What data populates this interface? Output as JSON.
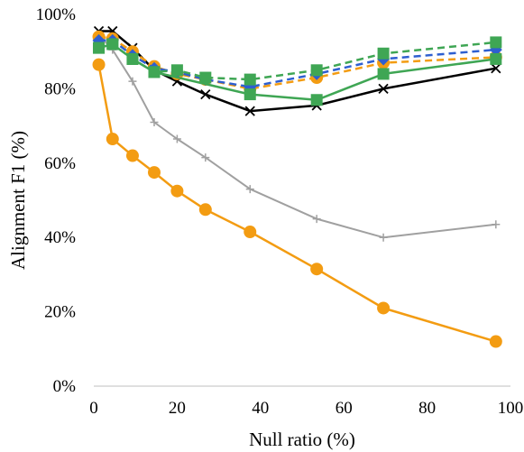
{
  "chart_data": {
    "type": "line",
    "xlabel": "Null ratio (%)",
    "ylabel": "Alignment F1 (%)",
    "xlim": [
      0,
      100
    ],
    "ylim": [
      0,
      100
    ],
    "xticks": [
      0,
      20,
      40,
      60,
      80,
      100
    ],
    "yticks": [
      0,
      20,
      40,
      60,
      80,
      100
    ],
    "xtick_labels": [
      "0",
      "20",
      "40",
      "60",
      "80",
      "100"
    ],
    "ytick_labels": [
      "0%",
      "20%",
      "40%",
      "60%",
      "80%",
      "100%"
    ],
    "grid": false,
    "legend": "none",
    "series": [
      {
        "color": "#a0a0a0",
        "dash": "solid",
        "marker": "plus",
        "x": [
          1.2,
          4.5,
          9.3,
          14.5,
          20,
          26.8,
          37.5,
          53.5,
          69.5,
          96.5
        ],
        "y": [
          94.5,
          90.5,
          82,
          71,
          66.5,
          61.5,
          53,
          45,
          40,
          43.5
        ]
      },
      {
        "color": "#000000",
        "dash": "solid",
        "marker": "x",
        "x": [
          1.2,
          4.5,
          9.3,
          14.5,
          20,
          26.8,
          37.5,
          53.5,
          69.5,
          96.5
        ],
        "y": [
          95.5,
          95.5,
          91,
          85,
          82,
          78.5,
          74,
          75.5,
          80,
          85.5
        ]
      },
      {
        "color": "#f39c12",
        "dash": "solid",
        "marker": "circle",
        "x": [
          1.2,
          4.5,
          9.3,
          14.5,
          20,
          26.8,
          37.5,
          53.5,
          69.5,
          96.5
        ],
        "y": [
          86.5,
          66.5,
          62,
          57.5,
          52.5,
          47.5,
          41.5,
          31.5,
          21,
          12
        ]
      },
      {
        "color": "#f39c12",
        "dash": "dashed",
        "marker": "circle",
        "x": [
          1.2,
          4.5,
          9.3,
          14.5,
          20,
          26.8,
          37.5,
          53.5,
          69.5,
          96.5
        ],
        "y": [
          94,
          93.5,
          90,
          86,
          84,
          82.5,
          80,
          83,
          87,
          88.5
        ]
      },
      {
        "color": "#2e5fd0",
        "dash": "dashed",
        "marker": "diamond",
        "x": [
          1.2,
          4.5,
          9.3,
          14.5,
          20,
          26.8,
          37.5,
          53.5,
          69.5,
          96.5
        ],
        "y": [
          93,
          93,
          89,
          85.5,
          84.5,
          82.5,
          80.5,
          84,
          88,
          90.5
        ]
      },
      {
        "color": "#3fa654",
        "dash": "dashed",
        "marker": "square",
        "x": [
          1.2,
          4.5,
          9.3,
          14.5,
          20,
          26.8,
          37.5,
          53.5,
          69.5,
          96.5
        ],
        "y": [
          91,
          92,
          88,
          84.5,
          85,
          83,
          82.5,
          85,
          89.5,
          92.5
        ]
      },
      {
        "color": "#3fa654",
        "dash": "solid",
        "marker": "square",
        "x": [
          1.2,
          4.5,
          9.3,
          14.5,
          37.5,
          53.5,
          69.5,
          96.5
        ],
        "y": [
          91,
          92,
          88,
          84.5,
          78.5,
          77,
          84,
          88
        ]
      }
    ]
  }
}
